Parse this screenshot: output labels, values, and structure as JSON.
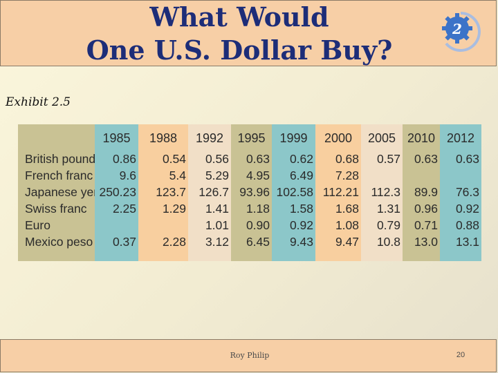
{
  "slide": {
    "title_line1": "What Would",
    "title_line2": "One U.S. Dollar Buy?",
    "badge_number": "2",
    "exhibit_label": "Exhibit 2.5",
    "footer_author": "Roy Philip",
    "page_number": "20"
  },
  "colors": {
    "label_col": "#c9c294",
    "teal": "#8cc7c9",
    "orange": "#f8cf9f",
    "beige": "#f1dfc7",
    "olive": "#c9c294"
  },
  "table": {
    "years": [
      "1985",
      "1988",
      "1992",
      "1995",
      "1999",
      "2000",
      "2005",
      "2010",
      "2012"
    ],
    "rows": [
      {
        "currency": "British pound",
        "values": [
          "0.86",
          "0.54",
          "0.56",
          "0.63",
          "0.62",
          "0.68",
          "0.57",
          "0.63",
          "0.63"
        ]
      },
      {
        "currency": "French franc",
        "values": [
          "9.6",
          "5.4",
          "5.29",
          "4.95",
          "6.49",
          "7.28",
          "",
          "",
          ""
        ]
      },
      {
        "currency": "Japanese yen",
        "values": [
          "250.23",
          "123.7",
          "126.7",
          "93.96",
          "102.58",
          "112.21",
          "112.3",
          "89.9",
          "76.3"
        ]
      },
      {
        "currency": "Swiss franc",
        "values": [
          "2.25",
          "1.29",
          "1.41",
          "1.18",
          "1.58",
          "1.68",
          "1.31",
          "0.96",
          "0.92"
        ]
      },
      {
        "currency": "Euro",
        "values": [
          "",
          "",
          "1.01",
          "0.90",
          "0.92",
          "1.08",
          "0.79",
          "0.71",
          "0.88"
        ]
      },
      {
        "currency": "Mexico peso",
        "values": [
          "0.37",
          "2.28",
          "3.12",
          "6.45",
          "9.43",
          "9.47",
          "10.8",
          "13.0",
          "13.1"
        ]
      }
    ]
  }
}
